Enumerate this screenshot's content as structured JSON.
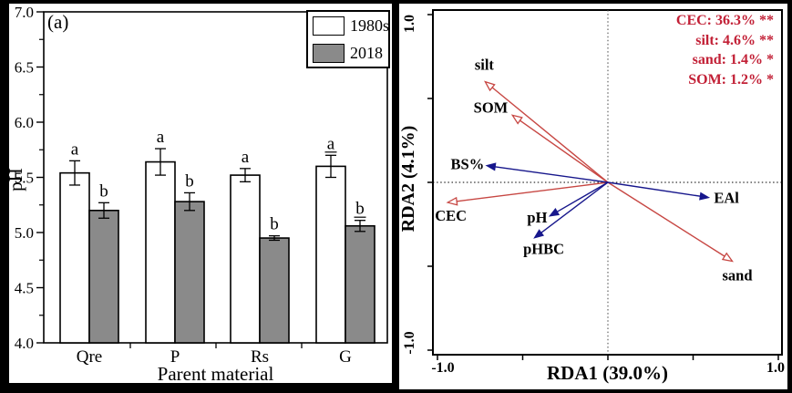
{
  "page": {
    "background": "#000000"
  },
  "chart_data": [
    {
      "type": "bar",
      "panel_tag": "(a)",
      "title": "",
      "xlabel": "Parent material",
      "ylabel": "pH",
      "ylim": [
        4.0,
        7.0
      ],
      "ytick_labels": [
        "4.0",
        "4.5",
        "5.0",
        "5.5",
        "6.0",
        "6.5",
        "7.0"
      ],
      "minor_tick_interval": 0.25,
      "categories": [
        "Qre",
        "P",
        "Rs",
        "G"
      ],
      "series": [
        {
          "name": "1980s",
          "fill": "#ffffff",
          "values": [
            5.54,
            5.64,
            5.52,
            5.6
          ],
          "errors": [
            0.11,
            0.12,
            0.06,
            0.1
          ],
          "sig_letters": [
            "a",
            "a",
            "a",
            "a"
          ],
          "letter_underline": [
            false,
            false,
            false,
            true
          ]
        },
        {
          "name": "2018",
          "fill": "#8a8a8a",
          "values": [
            5.2,
            5.28,
            4.95,
            5.06
          ],
          "errors": [
            0.07,
            0.08,
            0.02,
            0.05
          ],
          "sig_letters": [
            "b",
            "b",
            "b",
            "b"
          ],
          "letter_underline": [
            false,
            false,
            false,
            true
          ]
        }
      ],
      "legend_position": "top-right",
      "grid": false,
      "bar_edge_color": "#000000"
    },
    {
      "type": "biplot",
      "title": "",
      "xlabel": "RDA1 (39.0%)",
      "ylabel": "RDA2 (4.1%)",
      "xlim": [
        -1.0,
        1.0
      ],
      "ylim": [
        -1.0,
        1.0
      ],
      "xtick_values": [
        -1.0,
        -0.5,
        0,
        0.5,
        1.0
      ],
      "ytick_values": [
        -1.0,
        -0.5,
        0,
        0.5,
        1.0
      ],
      "xtick_labels": [
        "-1.0",
        "1.0"
      ],
      "ytick_labels": [
        "1.0",
        "-1.0"
      ],
      "crosshair": true,
      "colors": {
        "env": "#c74743",
        "response": "#17178c",
        "annotation": "#c22036"
      },
      "vectors": [
        {
          "name": "silt",
          "x": -0.72,
          "y": 0.6,
          "group": "env",
          "label_layout": {
            "anchor": "middle",
            "dx": -1,
            "dy": -13
          }
        },
        {
          "name": "SOM",
          "x": -0.56,
          "y": 0.4,
          "group": "env",
          "label_layout": {
            "anchor": "end",
            "dx": -5,
            "dy": -3
          }
        },
        {
          "name": "CEC",
          "x": -0.94,
          "y": -0.12,
          "group": "env",
          "label_layout": {
            "anchor": "start",
            "dx": -14,
            "dy": 20
          }
        },
        {
          "name": "sand",
          "x": 0.73,
          "y": -0.47,
          "group": "env",
          "label_layout": {
            "anchor": "start",
            "dx": -11,
            "dy": 21
          }
        },
        {
          "name": "BS%",
          "x": -0.71,
          "y": 0.1,
          "group": "response",
          "label_layout": {
            "anchor": "end",
            "dx": -3,
            "dy": 4
          }
        },
        {
          "name": "EAl",
          "x": 0.59,
          "y": -0.09,
          "group": "response",
          "label_layout": {
            "anchor": "start",
            "dx": 6,
            "dy": 6
          }
        },
        {
          "name": "pH",
          "x": -0.34,
          "y": -0.2,
          "group": "response",
          "label_layout": {
            "anchor": "end",
            "dx": -3,
            "dy": 7
          }
        },
        {
          "name": "pHBC",
          "x": -0.43,
          "y": -0.33,
          "group": "response",
          "label_layout": {
            "anchor": "middle",
            "dx": 10,
            "dy": 18
          }
        }
      ],
      "annotations": [
        "CEC: 36.3% **",
        "silt: 4.6% **",
        "sand: 1.4% *",
        "SOM: 1.2% *"
      ]
    }
  ]
}
